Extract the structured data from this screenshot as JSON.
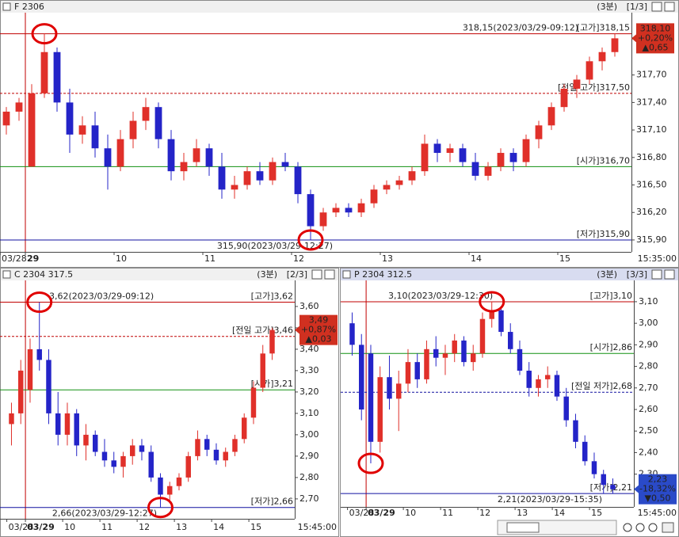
{
  "chart_data": [
    {
      "type": "candlestick",
      "title": "F 2306",
      "period": "(3분)",
      "page": "[1/3]",
      "end_label": "15:35:00",
      "up_color": "#e0302a",
      "down_color": "#2424c8",
      "categories": [
        "03/28",
        null,
        "29",
        null,
        null,
        null,
        null,
        null,
        null,
        "10",
        null,
        null,
        null,
        null,
        null,
        null,
        "11",
        null,
        null,
        null,
        null,
        null,
        null,
        "12",
        null,
        null,
        null,
        null,
        null,
        null,
        "13",
        null,
        null,
        null,
        null,
        null,
        null,
        "14",
        null,
        null,
        null,
        null,
        null,
        null,
        "15",
        null,
        null,
        null,
        null
      ],
      "open": [
        317.15,
        317.3,
        316.7,
        317.5,
        317.95,
        317.4,
        317.05,
        317.15,
        316.9,
        316.7,
        317,
        317.2,
        317.35,
        317,
        316.65,
        316.75,
        316.9,
        316.7,
        316.45,
        316.5,
        316.65,
        316.55,
        316.75,
        316.7,
        316.4,
        316.05,
        316.2,
        316.25,
        316.2,
        316.3,
        316.45,
        316.5,
        316.55,
        316.65,
        316.95,
        316.85,
        316.9,
        316.75,
        316.6,
        316.7,
        316.85,
        316.75,
        317,
        317.15,
        317.35,
        317.55,
        317.65,
        317.85,
        317.95
      ],
      "high": [
        317.35,
        317.45,
        317.6,
        318.15,
        318,
        317.55,
        317.25,
        317.3,
        317.05,
        317.1,
        317.3,
        317.45,
        317.4,
        317.1,
        316.85,
        317,
        316.95,
        316.85,
        316.6,
        316.7,
        316.75,
        316.8,
        316.85,
        316.75,
        316.45,
        316.25,
        316.3,
        316.3,
        316.35,
        316.5,
        316.55,
        316.6,
        316.7,
        317.05,
        317,
        316.95,
        316.95,
        316.85,
        316.75,
        316.9,
        316.9,
        317.05,
        317.2,
        317.4,
        317.6,
        317.7,
        317.9,
        318,
        318.15
      ],
      "low": [
        317.05,
        317.2,
        316.7,
        317.45,
        317.3,
        316.85,
        316.95,
        316.8,
        316.45,
        316.65,
        316.9,
        317.1,
        316.9,
        316.55,
        316.55,
        316.7,
        316.6,
        316.35,
        316.35,
        316.45,
        316.5,
        316.5,
        316.65,
        316.3,
        315.9,
        316,
        316.15,
        316.15,
        316.15,
        316.25,
        316.4,
        316.45,
        316.5,
        316.6,
        316.75,
        316.75,
        316.7,
        316.55,
        316.55,
        316.65,
        316.65,
        316.7,
        316.9,
        317.1,
        317.3,
        317.45,
        317.6,
        317.75,
        317.9
      ],
      "close": [
        317.3,
        317.4,
        317.5,
        317.95,
        317.4,
        317.05,
        317.15,
        316.9,
        316.7,
        317,
        317.2,
        317.35,
        317,
        316.65,
        316.75,
        316.9,
        316.7,
        316.45,
        316.5,
        316.65,
        316.55,
        316.75,
        316.7,
        316.4,
        316.05,
        316.2,
        316.25,
        316.2,
        316.3,
        316.45,
        316.5,
        316.55,
        316.65,
        316.95,
        316.85,
        316.9,
        316.75,
        316.6,
        316.7,
        316.85,
        316.75,
        317,
        317.15,
        317.35,
        317.55,
        317.65,
        317.85,
        317.95,
        318.1
      ],
      "ylim": [
        315.77,
        318.38
      ],
      "yticks": [
        {
          "value": 317.7,
          "label": "317,70"
        },
        {
          "value": 317.4,
          "label": "317,40"
        },
        {
          "value": 317.1,
          "label": "317,10"
        },
        {
          "value": 316.8,
          "label": "316,80"
        },
        {
          "value": 316.5,
          "label": "316,50"
        },
        {
          "value": 316.2,
          "label": "316,20"
        },
        {
          "value": 315.9,
          "label": "315,90"
        }
      ],
      "levels": [
        {
          "label": "[고가]318,15",
          "value": 318.15,
          "color": "#c00000",
          "dashed": false
        },
        {
          "label": "[전일 고가]317,50",
          "value": 317.5,
          "color": "#c00000",
          "dashed": true
        },
        {
          "label": "[시가]316,70",
          "value": 316.7,
          "color": "#109010",
          "dashed": false
        },
        {
          "label": "[저가]315,90",
          "value": 315.9,
          "color": "#1010a0",
          "dashed": false
        }
      ],
      "annotations": [
        {
          "text": "318,15(2023/03/29-09:12)",
          "value": 318.15,
          "color": "#c00000"
        },
        {
          "text": "315,90(2023/03/29-12:27)",
          "value": 315.9,
          "color": "#1010a0"
        }
      ],
      "price_box": {
        "lines": [
          "318,10",
          "+0,20%",
          "▲0,65"
        ],
        "value": 318.1,
        "color": "#d03020"
      }
    },
    {
      "type": "candlestick",
      "title": "C 2304 317.5",
      "period": "(3분)",
      "page": "[2/3]",
      "end_label": "15:45:00",
      "up_color": "#e0302a",
      "down_color": "#2424c8",
      "categories": [
        "03/28",
        null,
        "03/29",
        null,
        null,
        null,
        "10",
        null,
        null,
        null,
        "11",
        null,
        null,
        null,
        "12",
        null,
        null,
        null,
        "13",
        null,
        null,
        null,
        "14",
        null,
        null,
        null,
        "15",
        null,
        null
      ],
      "open": [
        3.05,
        3.1,
        3.21,
        3.4,
        3.35,
        3.1,
        3,
        3.1,
        2.95,
        3,
        2.92,
        2.88,
        2.85,
        2.9,
        2.95,
        2.92,
        2.8,
        2.72,
        2.76,
        2.8,
        2.9,
        2.98,
        2.93,
        2.88,
        2.92,
        2.98,
        3.08,
        3.22,
        3.38
      ],
      "high": [
        3.15,
        3.35,
        3.45,
        3.62,
        3.4,
        3.2,
        3.15,
        3.12,
        3.05,
        3.02,
        2.98,
        2.92,
        2.92,
        2.98,
        2.98,
        2.95,
        2.82,
        2.78,
        2.82,
        2.92,
        3.02,
        3,
        2.96,
        2.94,
        3,
        3.1,
        3.25,
        3.42,
        3.5
      ],
      "low": [
        2.95,
        3.05,
        3.15,
        3.3,
        3.05,
        2.95,
        2.95,
        2.9,
        2.88,
        2.9,
        2.85,
        2.82,
        2.8,
        2.86,
        2.88,
        2.78,
        2.66,
        2.68,
        2.74,
        2.78,
        2.88,
        2.9,
        2.86,
        2.85,
        2.9,
        2.96,
        3.05,
        3.2,
        3.35
      ],
      "close": [
        3.1,
        3.3,
        3.4,
        3.35,
        3.1,
        3,
        3.1,
        2.95,
        3,
        2.92,
        2.88,
        2.85,
        2.9,
        2.95,
        2.92,
        2.8,
        2.72,
        2.76,
        2.8,
        2.9,
        2.98,
        2.93,
        2.88,
        2.92,
        2.98,
        3.08,
        3.22,
        3.38,
        3.49
      ],
      "ylim": [
        2.607,
        3.722
      ],
      "yticks": [
        {
          "value": 3.6,
          "label": "3,60"
        },
        {
          "value": 3.5,
          "label": "3,50"
        },
        {
          "value": 3.4,
          "label": "3,40"
        },
        {
          "value": 3.3,
          "label": "3,30"
        },
        {
          "value": 3.2,
          "label": "3,20"
        },
        {
          "value": 3.1,
          "label": "3,10"
        },
        {
          "value": 3,
          "label": "3,00"
        },
        {
          "value": 2.9,
          "label": "2,90"
        },
        {
          "value": 2.8,
          "label": "2,80"
        },
        {
          "value": 2.7,
          "label": "2,70"
        }
      ],
      "levels": [
        {
          "label": "[고가]3,62",
          "value": 3.62,
          "color": "#c00000",
          "dashed": false
        },
        {
          "label": "[전일 고가]3,46",
          "value": 3.46,
          "color": "#c00000",
          "dashed": true
        },
        {
          "label": "[시가]3,21",
          "value": 3.21,
          "color": "#109010",
          "dashed": false
        },
        {
          "label": "[저가]2,66",
          "value": 2.66,
          "color": "#1010a0",
          "dashed": false
        }
      ],
      "annotations": [
        {
          "text": "3,62(2023/03/29-09:12)",
          "value": 3.62,
          "color": "#c00000"
        },
        {
          "text": "2,66(2023/03/29-12:27)",
          "value": 2.66,
          "color": "#1010a0"
        }
      ],
      "price_box": {
        "lines": [
          "3,49",
          "+0,87%",
          "▲0,03"
        ],
        "value": 3.49,
        "color": "#d03020"
      }
    },
    {
      "type": "candlestick",
      "title": "P 2304 312.5",
      "period": "(3분)",
      "page": "[3/3]",
      "end_label": "15:45:00",
      "up_color": "#e0302a",
      "down_color": "#2424c8",
      "categories": [
        "03/28",
        null,
        "03/29",
        null,
        null,
        null,
        "10",
        null,
        null,
        null,
        "11",
        null,
        null,
        null,
        "12",
        null,
        null,
        null,
        "13",
        null,
        null,
        null,
        "14",
        null,
        null,
        null,
        "15",
        null,
        null
      ],
      "open": [
        3,
        2.9,
        2.86,
        2.45,
        2.75,
        2.65,
        2.72,
        2.82,
        2.74,
        2.88,
        2.84,
        2.86,
        2.92,
        2.82,
        2.86,
        3.02,
        3.06,
        2.96,
        2.88,
        2.78,
        2.7,
        2.74,
        2.76,
        2.66,
        2.55,
        2.45,
        2.36,
        2.3,
        2.25
      ],
      "high": [
        3.05,
        2.95,
        2.9,
        2.8,
        2.85,
        2.78,
        2.88,
        2.86,
        2.92,
        2.94,
        2.9,
        2.95,
        2.94,
        2.9,
        3.05,
        3.1,
        3.08,
        3,
        2.92,
        2.82,
        2.76,
        2.8,
        2.78,
        2.7,
        2.58,
        2.48,
        2.4,
        2.32,
        2.28
      ],
      "low": [
        2.85,
        2.55,
        2.35,
        2.4,
        2.6,
        2.5,
        2.68,
        2.7,
        2.72,
        2.8,
        2.76,
        2.82,
        2.8,
        2.78,
        2.84,
        2.98,
        2.94,
        2.86,
        2.76,
        2.66,
        2.66,
        2.7,
        2.64,
        2.52,
        2.42,
        2.34,
        2.28,
        2.21,
        2.21
      ],
      "close": [
        2.9,
        2.6,
        2.45,
        2.75,
        2.65,
        2.72,
        2.82,
        2.74,
        2.88,
        2.84,
        2.86,
        2.92,
        2.82,
        2.86,
        3.02,
        3.06,
        2.96,
        2.88,
        2.78,
        2.7,
        2.74,
        2.76,
        2.66,
        2.55,
        2.45,
        2.36,
        2.3,
        2.25,
        2.23
      ],
      "ylim": [
        2.148,
        3.199
      ],
      "yticks": [
        {
          "value": 3.1,
          "label": "3,10"
        },
        {
          "value": 3,
          "label": "3,00"
        },
        {
          "value": 2.9,
          "label": "2,90"
        },
        {
          "value": 2.8,
          "label": "2,80"
        },
        {
          "value": 2.7,
          "label": "2,70"
        },
        {
          "value": 2.6,
          "label": "2,60"
        },
        {
          "value": 2.5,
          "label": "2,50"
        },
        {
          "value": 2.4,
          "label": "2,40"
        },
        {
          "value": 2.3,
          "label": "2,30"
        }
      ],
      "levels": [
        {
          "label": "[고가]3,10",
          "value": 3.1,
          "color": "#c00000",
          "dashed": false
        },
        {
          "label": "[시가]2,86",
          "value": 2.86,
          "color": "#109010",
          "dashed": false
        },
        {
          "label": "[전일 저가]2,68",
          "value": 2.68,
          "color": "#1010a0",
          "dashed": true
        },
        {
          "label": "[저가]2,21",
          "value": 2.21,
          "color": "#1010a0",
          "dashed": false
        }
      ],
      "annotations": [
        {
          "text": "3,10(2023/03/29-12:30)",
          "value": 3.1,
          "color": "#c00000"
        },
        {
          "text": "2,21(2023/03/29-15:35)",
          "value": 2.21,
          "color": "#1010a0"
        }
      ],
      "price_box": {
        "lines": [
          "2,23",
          "-18,32%",
          "▼0,50"
        ],
        "value": 2.23,
        "color": "#2a4ac8"
      }
    }
  ]
}
